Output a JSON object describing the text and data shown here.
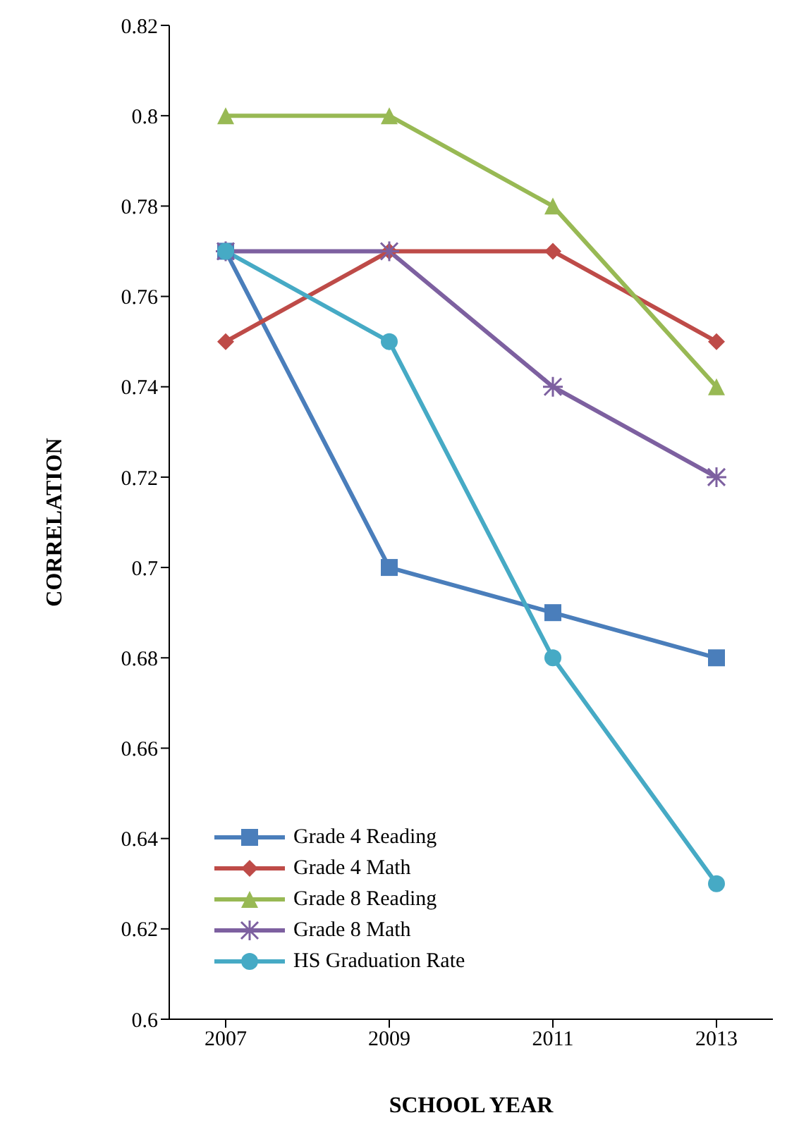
{
  "chart_data": {
    "type": "line",
    "xlabel": "SCHOOL YEAR",
    "ylabel": "CORRELATION",
    "categories": [
      "2007",
      "2009",
      "2011",
      "2013"
    ],
    "series": [
      {
        "name": "Grade 4 Reading",
        "color": "#4a7ebb",
        "marker": "square",
        "values": [
          0.77,
          0.7,
          0.69,
          0.68
        ]
      },
      {
        "name": "Grade 4 Math",
        "color": "#be4b48",
        "marker": "diamond",
        "values": [
          0.75,
          0.77,
          0.77,
          0.75
        ]
      },
      {
        "name": "Grade 8 Reading",
        "color": "#98b954",
        "marker": "triangle",
        "values": [
          0.8,
          0.8,
          0.78,
          0.74
        ]
      },
      {
        "name": "Grade 8 Math",
        "color": "#7d60a0",
        "marker": "cross",
        "values": [
          0.77,
          0.77,
          0.74,
          0.72
        ]
      },
      {
        "name": "HS Graduation Rate",
        "color": "#46aac5",
        "marker": "circle",
        "values": [
          0.77,
          0.75,
          0.68,
          0.63
        ]
      }
    ],
    "ylim": [
      0.6,
      0.82
    ],
    "yticks": [
      0.6,
      0.62,
      0.64,
      0.66,
      0.68,
      0.7,
      0.72,
      0.74,
      0.76,
      0.78,
      0.8,
      0.82
    ],
    "grid": false,
    "legend": "bottom left"
  }
}
